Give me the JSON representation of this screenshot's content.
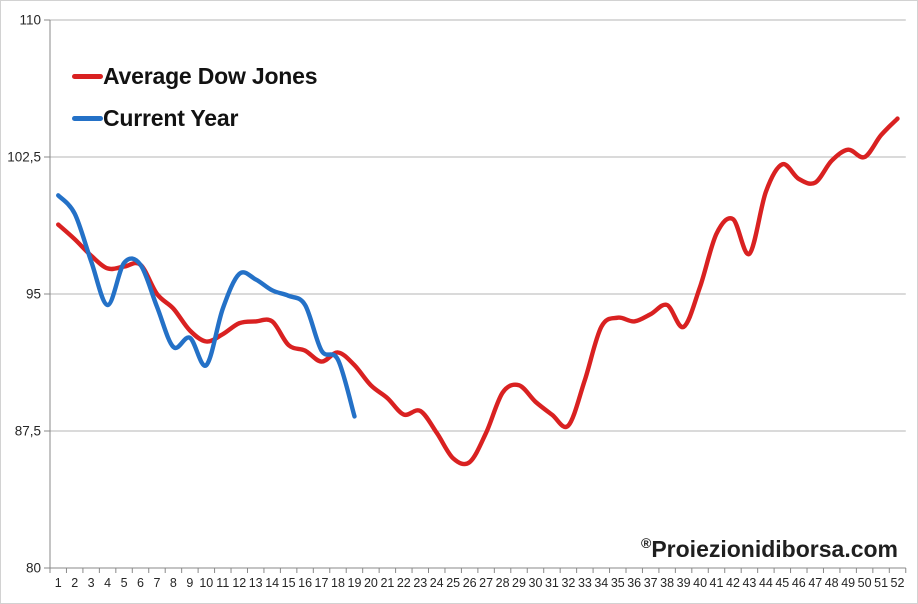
{
  "legend": {
    "items": [
      {
        "label": "Average Dow Jones",
        "color": "#d92121"
      },
      {
        "label": "Current Year",
        "color": "#2471c7"
      }
    ]
  },
  "watermark": {
    "symbol": "®",
    "text": "Proiezionidiborsa.com"
  },
  "chart_data": {
    "type": "line",
    "smoothed": true,
    "title": "",
    "xlabel": "",
    "ylabel": "",
    "categories": [
      1,
      2,
      3,
      4,
      5,
      6,
      7,
      8,
      9,
      10,
      11,
      12,
      13,
      14,
      15,
      16,
      17,
      18,
      19,
      20,
      21,
      22,
      23,
      24,
      25,
      26,
      27,
      28,
      29,
      30,
      31,
      32,
      33,
      34,
      35,
      36,
      37,
      38,
      39,
      40,
      41,
      42,
      43,
      44,
      45,
      46,
      47,
      48,
      49,
      50,
      51,
      52
    ],
    "ylim": [
      80,
      110
    ],
    "ytick_values": [
      110,
      102.5,
      95,
      87.5,
      80
    ],
    "ytick_labels": [
      "110",
      "102,5",
      "95",
      "87,5",
      "80"
    ],
    "grid": "horizontal",
    "legend_position": "top-left-inside",
    "series": [
      {
        "name": "Average Dow Jones",
        "color": "#d92121",
        "values": [
          98.8,
          98.0,
          97.1,
          96.4,
          96.5,
          96.6,
          95.0,
          94.2,
          93.0,
          92.4,
          92.8,
          93.4,
          93.5,
          93.5,
          92.2,
          91.9,
          91.3,
          91.8,
          91.1,
          90.0,
          89.3,
          88.4,
          88.6,
          87.4,
          86.0,
          85.8,
          87.4,
          89.6,
          90.0,
          89.1,
          88.4,
          87.8,
          90.3,
          93.2,
          93.7,
          93.5,
          93.9,
          94.4,
          93.2,
          95.4,
          98.3,
          99.1,
          97.2,
          100.6,
          102.1,
          101.3,
          101.1,
          102.3,
          102.9,
          102.5,
          103.7,
          104.6
        ]
      },
      {
        "name": "Current Year",
        "color": "#2471c7",
        "values": [
          100.4,
          99.4,
          96.8,
          94.4,
          96.7,
          96.6,
          94.3,
          92.1,
          92.6,
          91.1,
          94.2,
          96.1,
          95.8,
          95.2,
          94.9,
          94.4,
          91.9,
          91.4,
          88.3
        ]
      }
    ]
  }
}
